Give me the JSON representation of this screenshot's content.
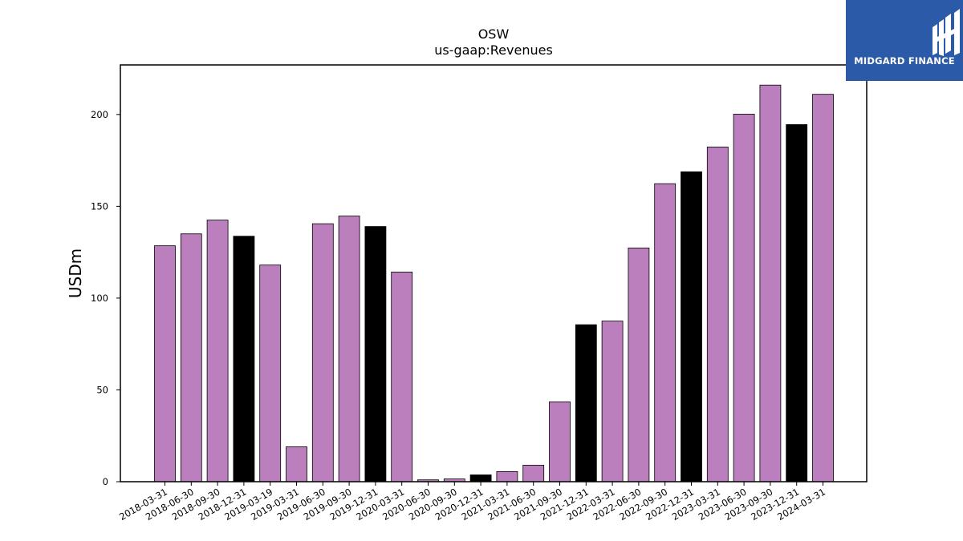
{
  "logo": {
    "text": "MIDGARD FINANCE",
    "icon": "midgard-logo-icon",
    "background": "#2a5aa8"
  },
  "chart_data": {
    "type": "bar",
    "title": "OSW",
    "subtitle": "us-gaap:Revenues",
    "xlabel": "",
    "ylabel": "USDm",
    "ylim": [
      0,
      227
    ],
    "yticks": [
      0,
      50,
      100,
      150,
      200
    ],
    "grid": false,
    "colors": {
      "quarter": "#bb7fbd",
      "year_end": "#000000",
      "edge": "#000000"
    },
    "categories": [
      "2018-03-31",
      "2018-06-30",
      "2018-09-30",
      "2018-12-31",
      "2019-03-19",
      "2019-03-31",
      "2019-06-30",
      "2019-09-30",
      "2019-12-31",
      "2020-03-31",
      "2020-06-30",
      "2020-09-30",
      "2020-12-31",
      "2021-03-31",
      "2021-06-30",
      "2021-09-30",
      "2021-12-31",
      "2022-03-31",
      "2022-06-30",
      "2022-09-30",
      "2022-12-31",
      "2023-03-31",
      "2023-06-30",
      "2023-09-30",
      "2023-12-31",
      "2024-03-31"
    ],
    "values": [
      128.5,
      135.0,
      142.5,
      133.7,
      118.0,
      19.0,
      140.5,
      144.7,
      139.0,
      114.2,
      1.0,
      1.5,
      3.7,
      5.5,
      9.0,
      43.5,
      85.5,
      87.5,
      127.3,
      162.3,
      168.8,
      182.3,
      200.2,
      216.0,
      194.5,
      211.0
    ],
    "year_end": [
      false,
      false,
      false,
      true,
      false,
      false,
      false,
      false,
      true,
      false,
      false,
      false,
      true,
      false,
      false,
      false,
      true,
      false,
      false,
      false,
      true,
      false,
      false,
      false,
      true,
      false
    ]
  }
}
